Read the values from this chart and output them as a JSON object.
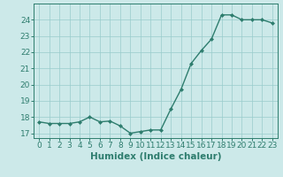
{
  "x": [
    0,
    1,
    2,
    3,
    4,
    5,
    6,
    7,
    8,
    9,
    10,
    11,
    12,
    13,
    14,
    15,
    16,
    17,
    18,
    19,
    20,
    21,
    22,
    23
  ],
  "y": [
    17.7,
    17.6,
    17.6,
    17.6,
    17.7,
    18.0,
    17.7,
    17.75,
    17.45,
    17.0,
    17.1,
    17.2,
    17.2,
    18.5,
    19.7,
    21.3,
    22.1,
    22.8,
    24.3,
    24.3,
    24.0,
    24.0,
    24.0,
    23.8
  ],
  "line_color": "#2e7d6e",
  "marker": "D",
  "marker_size": 2.0,
  "bg_color": "#cce9e9",
  "grid_color": "#99cccc",
  "xlabel": "Humidex (Indice chaleur)",
  "ylim": [
    16.7,
    25.0
  ],
  "xlim": [
    -0.5,
    23.5
  ],
  "yticks": [
    17,
    18,
    19,
    20,
    21,
    22,
    23,
    24
  ],
  "xticks": [
    0,
    1,
    2,
    3,
    4,
    5,
    6,
    7,
    8,
    9,
    10,
    11,
    12,
    13,
    14,
    15,
    16,
    17,
    18,
    19,
    20,
    21,
    22,
    23
  ],
  "tick_fontsize": 6.5,
  "xlabel_fontsize": 7.5,
  "line_width": 1.0
}
